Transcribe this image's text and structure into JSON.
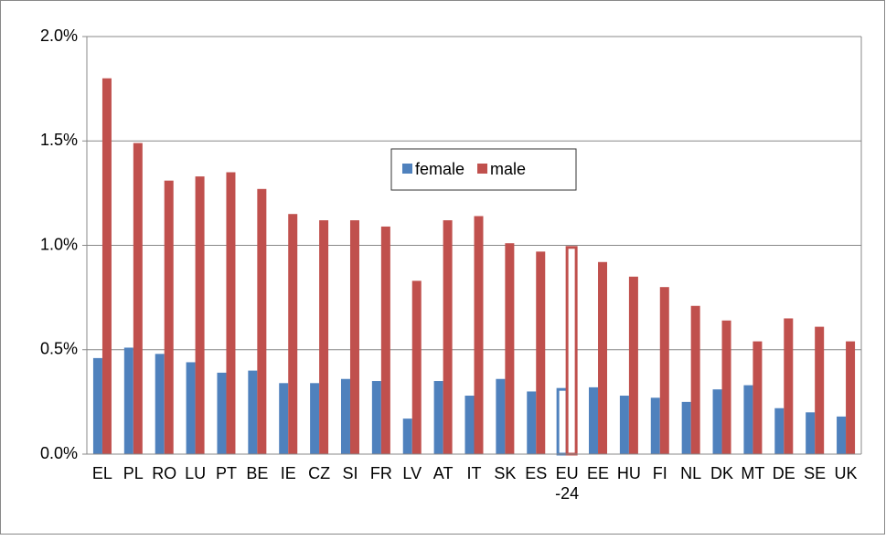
{
  "chart_data": {
    "type": "bar",
    "categories": [
      "EL",
      "PL",
      "RO",
      "LU",
      "PT",
      "BE",
      "IE",
      "CZ",
      "SI",
      "FR",
      "LV",
      "AT",
      "IT",
      "SK",
      "ES",
      "EU-24",
      "EE",
      "HU",
      "FI",
      "NL",
      "DK",
      "MT",
      "DE",
      "SE",
      "UK"
    ],
    "series": [
      {
        "name": "female",
        "color": "#4f81bd",
        "values": [
          0.46,
          0.51,
          0.48,
          0.44,
          0.39,
          0.4,
          0.34,
          0.34,
          0.36,
          0.35,
          0.17,
          0.35,
          0.28,
          0.36,
          0.3,
          0.31,
          0.32,
          0.28,
          0.27,
          0.25,
          0.31,
          0.33,
          0.22,
          0.2,
          0.18
        ]
      },
      {
        "name": "male",
        "color": "#c0504d",
        "values": [
          1.8,
          1.49,
          1.31,
          1.33,
          1.35,
          1.27,
          1.15,
          1.12,
          1.12,
          1.09,
          0.83,
          1.12,
          1.14,
          1.01,
          0.97,
          0.99,
          0.92,
          0.85,
          0.8,
          0.71,
          0.64,
          0.54,
          0.65,
          0.61,
          0.54
        ]
      }
    ],
    "highlight_index": 15,
    "ylim": [
      0,
      2.0
    ],
    "yticks": [
      {
        "value": 0,
        "label": "0.0%"
      },
      {
        "value": 0.5,
        "label": "0.5%"
      },
      {
        "value": 1.0,
        "label": "1.0%"
      },
      {
        "value": 1.5,
        "label": "1.5%"
      },
      {
        "value": 2.0,
        "label": "2.0%"
      }
    ],
    "grid": true,
    "legend": "center"
  }
}
